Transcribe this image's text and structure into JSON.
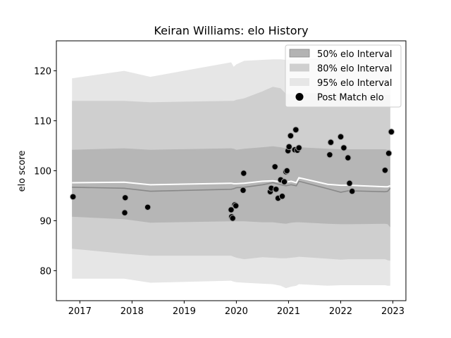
{
  "chart_data": {
    "type": "area",
    "title": "Keiran Williams: elo History",
    "xlabel": "",
    "ylabel": "elo score",
    "xlim": [
      2016.55,
      2023.25
    ],
    "ylim": [
      74.0,
      126.0
    ],
    "x_ticks": [
      2017,
      2018,
      2019,
      2020,
      2021,
      2022,
      2023
    ],
    "x_tick_labels": [
      "2017",
      "2018",
      "2019",
      "2020",
      "2021",
      "2022",
      "2023"
    ],
    "y_ticks": [
      80,
      90,
      100,
      110,
      120
    ],
    "y_tick_labels": [
      "80",
      "90",
      "100",
      "110",
      "120"
    ],
    "grid": false,
    "legend_position": "top-right",
    "colors": {
      "band_50": "#b3b3b3",
      "band_80": "#cfcfcf",
      "band_95": "#e6e6e6",
      "band_50_edge": "#888888",
      "mean_line": "#ffffff",
      "points": "#000000"
    },
    "legend": [
      {
        "label": "50% elo Interval",
        "kind": "band",
        "key": "band_50"
      },
      {
        "label": "80% elo Interval",
        "kind": "band",
        "key": "band_80"
      },
      {
        "label": "95% elo Interval",
        "kind": "band",
        "key": "band_95"
      },
      {
        "label": "Post Match elo",
        "kind": "point",
        "key": "points"
      }
    ],
    "bands_x": [
      2016.85,
      2017.85,
      2018.35,
      2019.9,
      2019.95,
      2020.0,
      2020.15,
      2020.5,
      2020.7,
      2020.85,
      2020.95,
      2021.05,
      2021.15,
      2021.2,
      2021.75,
      2022.0,
      2022.15,
      2022.85,
      2022.9,
      2022.95
    ],
    "mean": [
      97.6,
      97.7,
      97.2,
      97.5,
      97.4,
      97.4,
      97.5,
      97.9,
      98.0,
      97.8,
      97.7,
      97.9,
      97.6,
      98.6,
      97.3,
      97.1,
      97.1,
      96.8,
      96.8,
      97.0
    ],
    "median": [
      96.7,
      96.5,
      95.9,
      96.3,
      96.4,
      96.6,
      96.7,
      97.2,
      97.6,
      97.2,
      97.0,
      97.2,
      97.0,
      97.9,
      96.4,
      95.7,
      96.0,
      95.8,
      95.9,
      96.5
    ],
    "band_50": {
      "low": [
        90.8,
        90.3,
        89.6,
        89.9,
        89.9,
        89.9,
        89.9,
        89.7,
        89.7,
        89.5,
        89.4,
        89.6,
        89.7,
        89.7,
        89.4,
        89.3,
        89.3,
        89.4,
        89.3,
        88.7
      ],
      "high": [
        104.2,
        104.5,
        104.2,
        104.5,
        104.4,
        104.2,
        104.4,
        104.7,
        104.9,
        104.7,
        104.5,
        104.6,
        104.4,
        104.7,
        104.4,
        104.3,
        104.3,
        104.3,
        104.2,
        104.3
      ]
    },
    "band_80": {
      "low": [
        84.4,
        83.4,
        83.0,
        83.0,
        82.8,
        82.6,
        82.3,
        82.7,
        82.6,
        82.5,
        82.5,
        82.6,
        82.7,
        82.8,
        82.4,
        82.2,
        82.3,
        82.3,
        82.1,
        82.0
      ],
      "high": [
        114.0,
        114.0,
        113.7,
        114.0,
        114.0,
        114.2,
        114.5,
        115.9,
        116.8,
        116.5,
        115.4,
        115.3,
        115.2,
        115.6,
        115.4,
        115.2,
        115.2,
        115.2,
        115.1,
        115.2
      ]
    },
    "band_95": {
      "low": [
        78.4,
        78.4,
        77.6,
        78.0,
        77.8,
        77.7,
        77.6,
        77.4,
        77.3,
        77.0,
        76.5,
        76.8,
        77.0,
        77.3,
        77.0,
        77.1,
        77.1,
        77.1,
        77.0,
        77.0
      ],
      "high": [
        118.5,
        120.0,
        118.8,
        121.7,
        120.8,
        121.3,
        122.0,
        122.2,
        122.3,
        122.3,
        122.2,
        122.3,
        122.3,
        122.3,
        122.6,
        122.8,
        122.8,
        122.6,
        122.8,
        122.8
      ]
    },
    "points": [
      {
        "x": 2016.87,
        "y": 94.8
      },
      {
        "x": 2017.87,
        "y": 94.6
      },
      {
        "x": 2017.86,
        "y": 91.6
      },
      {
        "x": 2018.3,
        "y": 92.7
      },
      {
        "x": 2019.9,
        "y": 92.2
      },
      {
        "x": 2019.91,
        "y": 90.8
      },
      {
        "x": 2019.93,
        "y": 90.5
      },
      {
        "x": 2019.97,
        "y": 93.2
      },
      {
        "x": 2019.99,
        "y": 93.0
      },
      {
        "x": 2020.13,
        "y": 96.1
      },
      {
        "x": 2020.14,
        "y": 99.5
      },
      {
        "x": 2020.65,
        "y": 95.8
      },
      {
        "x": 2020.67,
        "y": 96.5
      },
      {
        "x": 2020.74,
        "y": 100.8
      },
      {
        "x": 2020.76,
        "y": 96.3
      },
      {
        "x": 2020.8,
        "y": 94.5
      },
      {
        "x": 2020.85,
        "y": 98.2
      },
      {
        "x": 2020.88,
        "y": 94.9
      },
      {
        "x": 2020.92,
        "y": 97.8
      },
      {
        "x": 2020.95,
        "y": 99.8
      },
      {
        "x": 2020.97,
        "y": 100.0
      },
      {
        "x": 2020.99,
        "y": 104.0
      },
      {
        "x": 2021.01,
        "y": 104.8
      },
      {
        "x": 2021.04,
        "y": 107.0
      },
      {
        "x": 2021.12,
        "y": 104.2
      },
      {
        "x": 2021.14,
        "y": 108.2
      },
      {
        "x": 2021.17,
        "y": 104.1
      },
      {
        "x": 2021.2,
        "y": 104.6
      },
      {
        "x": 2021.79,
        "y": 103.2
      },
      {
        "x": 2021.81,
        "y": 105.7
      },
      {
        "x": 2022.0,
        "y": 106.8
      },
      {
        "x": 2022.06,
        "y": 104.6
      },
      {
        "x": 2022.14,
        "y": 102.6
      },
      {
        "x": 2022.17,
        "y": 97.5
      },
      {
        "x": 2022.22,
        "y": 95.9
      },
      {
        "x": 2022.85,
        "y": 100.1
      },
      {
        "x": 2022.92,
        "y": 103.5
      },
      {
        "x": 2022.97,
        "y": 107.8
      }
    ]
  }
}
